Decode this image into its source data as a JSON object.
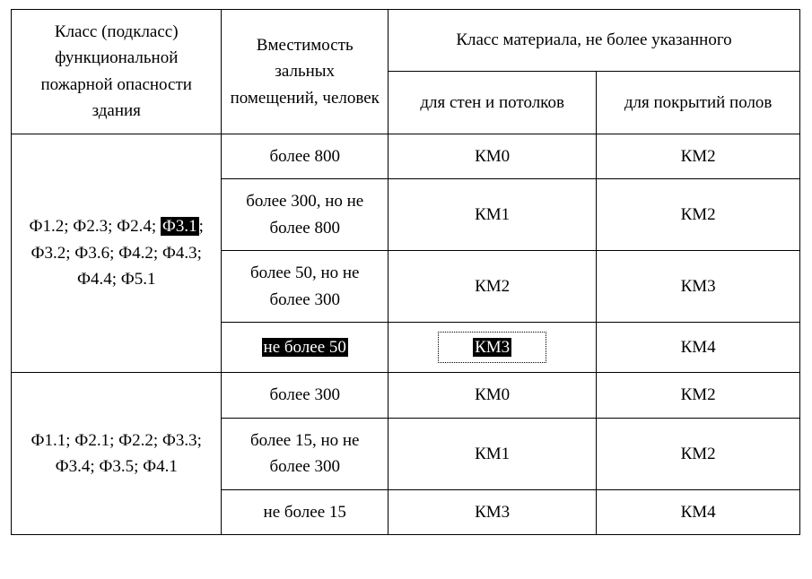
{
  "header": {
    "col1": "Класс (подкласс) функциональной пожарной опасности здания",
    "col2": "Вместимость зальных помещений, человек",
    "col3_main": "Класс материала, не более указанного",
    "col3_sub1": "для стен и потолков",
    "col3_sub2": "для покрытий полов"
  },
  "group1": {
    "classes_pre": "Ф1.2; Ф2.3; Ф2.4; ",
    "classes_hl": "Ф3.1",
    "classes_post": "; Ф3.2; Ф3.6; Ф4.2; Ф4.3; Ф4.4; Ф5.1",
    "r1": {
      "cap": "более 800",
      "walls": "КМ0",
      "floors": "КМ2"
    },
    "r2": {
      "cap": "более 300, но не более 800",
      "walls": "КМ1",
      "floors": "КМ2"
    },
    "r3": {
      "cap": "более 50, но не более 300",
      "walls": "КМ2",
      "floors": "КМ3"
    },
    "r4": {
      "cap_hl": "не более 50",
      "walls_hl": "КМ3",
      "floors": "КМ4"
    }
  },
  "group2": {
    "classes": "Ф1.1; Ф2.1; Ф2.2; Ф3.3; Ф3.4; Ф3.5; Ф4.1",
    "r1": {
      "cap": "более 300",
      "walls": "КМ0",
      "floors": "КМ2"
    },
    "r2": {
      "cap": "более 15, но не более 300",
      "walls": "КМ1",
      "floors": "КМ2"
    },
    "r3": {
      "cap": "не более 15",
      "walls": "КМ3",
      "floors": "КМ4"
    }
  },
  "style": {
    "font_family": "Times New Roman",
    "font_size_pt": 14,
    "border_color": "#000000",
    "highlight_bg": "#000000",
    "highlight_fg": "#ffffff",
    "background": "#ffffff"
  }
}
